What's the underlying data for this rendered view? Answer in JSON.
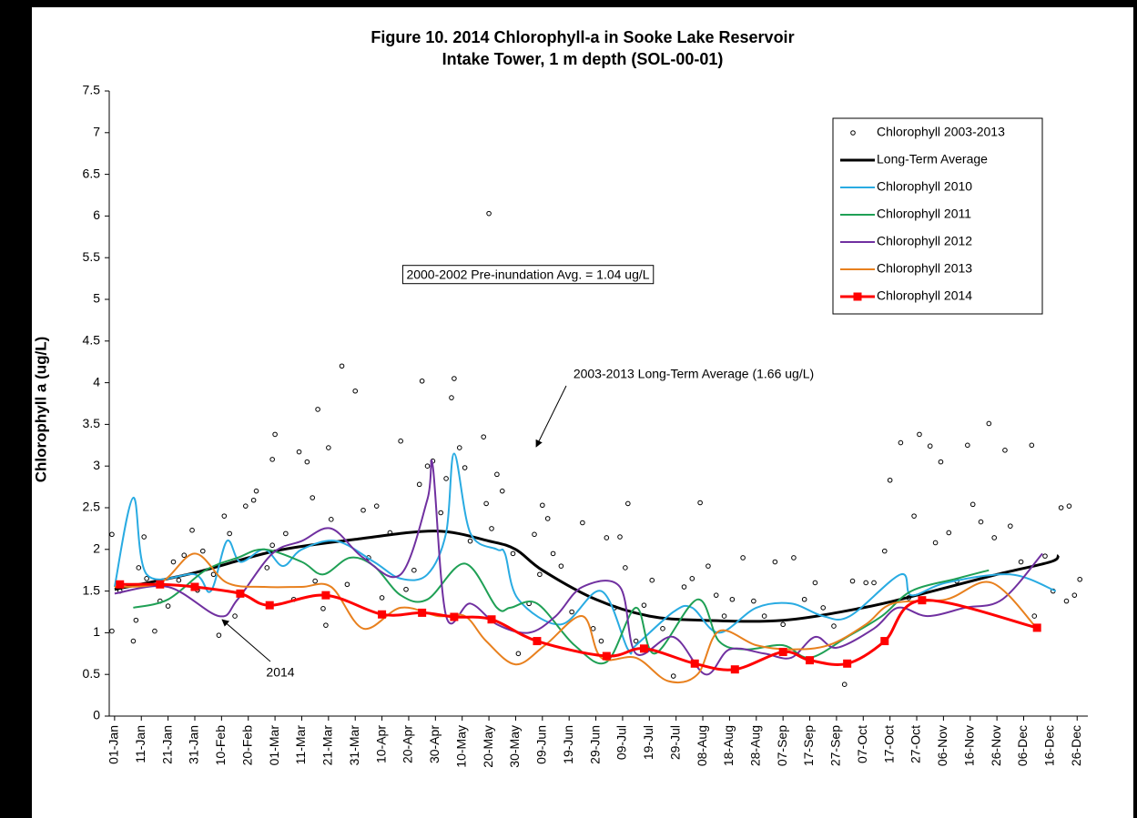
{
  "chart_data": {
    "type": "line",
    "title": "Figure 10. 2014 Chlorophyll-a in Sooke Lake Reservoir",
    "subtitle": "Intake Tower, 1 m depth (SOL-00-01)",
    "ylabel": "Chlorophyll a (ug/L)",
    "xlim": [
      -1,
      365
    ],
    "ylim": [
      0,
      7.5
    ],
    "yticks": [
      0,
      0.5,
      1,
      1.5,
      2,
      2.5,
      3,
      3.5,
      4,
      4.5,
      5,
      5.5,
      6,
      6.5,
      7,
      7.5
    ],
    "xticks": [
      {
        "value": 1,
        "label": "01-Jan"
      },
      {
        "value": 11,
        "label": "11-Jan"
      },
      {
        "value": 21,
        "label": "21-Jan"
      },
      {
        "value": 31,
        "label": "31-Jan"
      },
      {
        "value": 41,
        "label": "10-Feb"
      },
      {
        "value": 51,
        "label": "20-Feb"
      },
      {
        "value": 61,
        "label": "01-Mar"
      },
      {
        "value": 71,
        "label": "11-Mar"
      },
      {
        "value": 81,
        "label": "21-Mar"
      },
      {
        "value": 91,
        "label": "31-Mar"
      },
      {
        "value": 101,
        "label": "10-Apr"
      },
      {
        "value": 111,
        "label": "20-Apr"
      },
      {
        "value": 121,
        "label": "30-Apr"
      },
      {
        "value": 131,
        "label": "10-May"
      },
      {
        "value": 141,
        "label": "20-May"
      },
      {
        "value": 151,
        "label": "30-May"
      },
      {
        "value": 161,
        "label": "09-Jun"
      },
      {
        "value": 171,
        "label": "19-Jun"
      },
      {
        "value": 181,
        "label": "29-Jun"
      },
      {
        "value": 191,
        "label": "09-Jul"
      },
      {
        "value": 201,
        "label": "19-Jul"
      },
      {
        "value": 211,
        "label": "29-Jul"
      },
      {
        "value": 221,
        "label": "08-Aug"
      },
      {
        "value": 231,
        "label": "18-Aug"
      },
      {
        "value": 241,
        "label": "28-Aug"
      },
      {
        "value": 251,
        "label": "07-Sep"
      },
      {
        "value": 261,
        "label": "17-Sep"
      },
      {
        "value": 271,
        "label": "27-Sep"
      },
      {
        "value": 281,
        "label": "07-Oct"
      },
      {
        "value": 291,
        "label": "17-Oct"
      },
      {
        "value": 301,
        "label": "27-Oct"
      },
      {
        "value": 311,
        "label": "06-Nov"
      },
      {
        "value": 321,
        "label": "16-Nov"
      },
      {
        "value": 331,
        "label": "26-Nov"
      },
      {
        "value": 341,
        "label": "06-Dec"
      },
      {
        "value": 351,
        "label": "16-Dec"
      },
      {
        "value": 361,
        "label": "26-Dec"
      }
    ],
    "grid": false,
    "legend": "upper right",
    "smooth": true,
    "series": [
      {
        "name": "Chlorophyll 2003-2013",
        "type": "scatter",
        "color": "#000000",
        "x": [
          0,
          0,
          3,
          8,
          9,
          10,
          12,
          13,
          16,
          18,
          21,
          23,
          25,
          27,
          30,
          32,
          34,
          38,
          40,
          42,
          44,
          46,
          50,
          53,
          54,
          58,
          60,
          60,
          61,
          65,
          68,
          70,
          73,
          75,
          76,
          77,
          79,
          80,
          81,
          82,
          86,
          88,
          91,
          94,
          96,
          99,
          101,
          104,
          108,
          110,
          113,
          115,
          116,
          118,
          120,
          123,
          125,
          127,
          128,
          130,
          132,
          134,
          139,
          140,
          141,
          142,
          144,
          146,
          150,
          152,
          156,
          158,
          160,
          161,
          163,
          165,
          168,
          172,
          176,
          180,
          183,
          185,
          188,
          190,
          192,
          193,
          196,
          199,
          202,
          206,
          210,
          214,
          217,
          220,
          223,
          226,
          229,
          232,
          236,
          240,
          244,
          248,
          251,
          255,
          259,
          263,
          266,
          270,
          274,
          277,
          282,
          285,
          289,
          291,
          295,
          298,
          300,
          302,
          306,
          308,
          310,
          313,
          316,
          320,
          322,
          325,
          328,
          330,
          334,
          336,
          340,
          344,
          345,
          349,
          352,
          355,
          357,
          358,
          360,
          362
        ],
        "values": [
          2.18,
          1.02,
          1.5,
          0.9,
          1.15,
          1.78,
          2.15,
          1.65,
          1.02,
          1.38,
          1.32,
          1.85,
          1.63,
          1.93,
          2.23,
          1.51,
          1.98,
          1.7,
          0.97,
          2.4,
          2.19,
          1.2,
          2.52,
          2.59,
          2.7,
          1.78,
          2.05,
          3.08,
          3.38,
          2.19,
          1.4,
          3.17,
          3.05,
          2.62,
          1.62,
          3.68,
          1.29,
          1.09,
          3.22,
          2.36,
          4.2,
          1.58,
          3.9,
          2.47,
          1.9,
          2.52,
          1.42,
          2.2,
          3.3,
          1.52,
          1.75,
          2.78,
          4.02,
          3.0,
          3.06,
          2.44,
          2.85,
          3.82,
          4.05,
          3.22,
          2.98,
          2.1,
          3.35,
          2.55,
          6.03,
          2.25,
          2.9,
          2.7,
          1.95,
          0.75,
          1.35,
          2.18,
          1.7,
          2.53,
          2.37,
          1.95,
          1.8,
          1.25,
          2.32,
          1.05,
          0.9,
          2.14,
          1.3,
          2.15,
          1.78,
          2.55,
          0.9,
          1.33,
          1.63,
          1.05,
          0.48,
          1.55,
          1.65,
          2.56,
          1.8,
          1.45,
          1.2,
          1.4,
          1.9,
          1.38,
          1.2,
          1.85,
          1.1,
          1.9,
          1.4,
          1.6,
          1.3,
          1.08,
          0.38,
          1.62,
          1.6,
          1.6,
          1.98,
          2.83,
          3.28,
          1.42,
          2.4,
          3.38,
          3.24,
          2.08,
          3.05,
          2.2,
          1.62,
          3.25,
          2.54,
          2.33,
          3.51,
          2.14,
          3.19,
          2.28,
          1.85,
          3.25,
          1.2,
          1.92,
          1.5,
          2.5,
          1.38,
          2.52,
          1.45,
          1.64
        ]
      },
      {
        "name": "Long-Term Average",
        "type": "line",
        "color": "#000000",
        "x": [
          1,
          31,
          61,
          91,
          121,
          141,
          151,
          161,
          181,
          201,
          221,
          251,
          281,
          301,
          331,
          351,
          354
        ],
        "values": [
          1.52,
          1.72,
          1.98,
          2.12,
          2.22,
          2.1,
          2.0,
          1.75,
          1.4,
          1.2,
          1.15,
          1.15,
          1.3,
          1.45,
          1.7,
          1.85,
          1.93
        ]
      },
      {
        "name": "Chlorophyll 2010",
        "type": "line",
        "color": "#29abe2",
        "x": [
          1,
          8,
          13,
          31,
          37,
          43,
          48,
          57,
          64,
          71,
          84,
          98,
          108,
          118,
          125,
          128,
          134,
          144,
          147,
          152,
          168,
          183,
          193,
          196,
          210,
          217,
          227,
          241,
          254,
          266,
          276,
          295,
          299,
          312,
          336,
          353
        ],
        "values": [
          1.55,
          2.62,
          1.7,
          1.7,
          1.5,
          2.1,
          1.85,
          2.0,
          1.8,
          2.0,
          2.1,
          1.85,
          1.65,
          1.7,
          2.2,
          3.15,
          2.2,
          2.0,
          1.95,
          1.4,
          1.1,
          1.5,
          0.8,
          0.85,
          1.25,
          1.3,
          1.0,
          1.3,
          1.35,
          1.2,
          1.2,
          1.7,
          1.45,
          1.6,
          1.7,
          1.5
        ]
      },
      {
        "name": "Chlorophyll 2011",
        "type": "line",
        "color": "#1fa055",
        "x": [
          8,
          21,
          35,
          47,
          57,
          71,
          79,
          89,
          98,
          108,
          118,
          132,
          144,
          149,
          159,
          173,
          185,
          196,
          203,
          219,
          227,
          237,
          251,
          261,
          275,
          288,
          299,
          316,
          328
        ],
        "values": [
          1.3,
          1.4,
          1.75,
          1.9,
          2.0,
          1.85,
          1.7,
          1.9,
          1.8,
          1.45,
          1.4,
          1.83,
          1.3,
          1.3,
          1.35,
          0.85,
          0.65,
          1.3,
          0.75,
          1.4,
          0.9,
          0.8,
          0.85,
          0.7,
          0.95,
          1.2,
          1.5,
          1.65,
          1.75
        ]
      },
      {
        "name": "Chlorophyll 2012",
        "type": "line",
        "color": "#7030a0",
        "x": [
          1,
          21,
          40,
          47,
          60,
          71,
          82,
          94,
          108,
          118,
          120,
          125,
          134,
          144,
          156,
          166,
          176,
          190,
          196,
          210,
          222,
          231,
          244,
          254,
          263,
          271,
          285,
          294,
          305,
          319,
          333,
          348
        ],
        "values": [
          1.47,
          1.55,
          1.2,
          1.4,
          1.95,
          2.1,
          2.25,
          1.9,
          1.7,
          2.6,
          3.0,
          1.2,
          1.35,
          1.1,
          1.0,
          1.2,
          1.55,
          1.55,
          0.75,
          0.95,
          0.5,
          0.8,
          0.75,
          0.7,
          0.95,
          0.82,
          1.05,
          1.3,
          1.2,
          1.3,
          1.4,
          1.95
        ]
      },
      {
        "name": "Chlorophyll 2013",
        "type": "line",
        "color": "#e8801e",
        "x": [
          1,
          18,
          31,
          43,
          57,
          71,
          82,
          94,
          108,
          122,
          132,
          140,
          151,
          162,
          176,
          183,
          196,
          208,
          219,
          227,
          241,
          254,
          268,
          282,
          292,
          312,
          329,
          346
        ],
        "values": [
          1.55,
          1.6,
          1.95,
          1.6,
          1.55,
          1.55,
          1.55,
          1.05,
          1.3,
          1.2,
          1.2,
          0.9,
          0.62,
          0.85,
          1.2,
          0.7,
          0.7,
          0.42,
          0.5,
          1.02,
          0.85,
          0.8,
          0.85,
          1.1,
          1.35,
          1.4,
          1.6,
          1.05
        ]
      },
      {
        "name": "Chlorophyll 2014",
        "type": "line",
        "color": "#ff0000",
        "marker": "square",
        "x": [
          3,
          18,
          31,
          48,
          59,
          80,
          101,
          116,
          128,
          142,
          159,
          185,
          199,
          218,
          233,
          251,
          261,
          275,
          289,
          303,
          346
        ],
        "values": [
          1.58,
          1.58,
          1.55,
          1.47,
          1.33,
          1.45,
          1.22,
          1.24,
          1.19,
          1.16,
          0.9,
          0.72,
          0.81,
          0.63,
          0.56,
          0.77,
          0.67,
          0.63,
          0.9,
          1.39,
          1.06
        ]
      }
    ],
    "annotations": [
      "2000-2002 Pre-inundation Avg. = 1.04 ug/L",
      "2003-2013 Long-Term Average (1.66 ug/L)",
      "2014"
    ]
  }
}
